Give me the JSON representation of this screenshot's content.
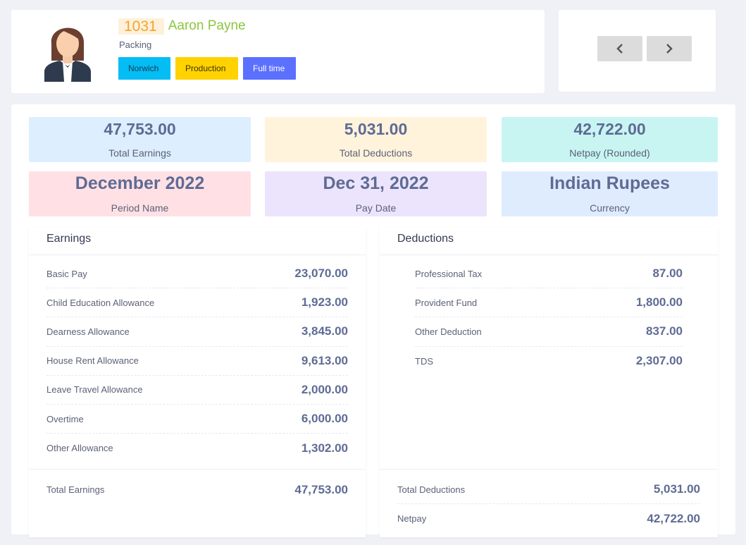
{
  "employee": {
    "id": "1031",
    "name": "Aaron Payne",
    "department": "Packing",
    "tags": {
      "location": "Norwich",
      "division": "Production",
      "type": "Full time"
    }
  },
  "nav": {
    "prev_icon": "chevron-left-icon",
    "next_icon": "chevron-right-icon"
  },
  "stats": {
    "total_earnings": {
      "value": "47,753.00",
      "label": "Total Earnings"
    },
    "total_deductions": {
      "value": "5,031.00",
      "label": "Total Deductions"
    },
    "netpay": {
      "value": "42,722.00",
      "label": "Netpay (Rounded)"
    },
    "period": {
      "value": "December 2022",
      "label": "Period Name"
    },
    "pay_date": {
      "value": "Dec 31, 2022",
      "label": "Pay Date"
    },
    "currency": {
      "value": "Indian Rupees",
      "label": "Currency"
    }
  },
  "colors": {
    "earnings_bg": "#ddeeff",
    "deductions_bg": "#fff3dc",
    "netpay_bg": "#c8f5f2",
    "period_bg": "#ffe1e5",
    "pay_date_bg": "#ebe4fc",
    "currency_bg": "#dfecfe"
  },
  "earnings": {
    "title": "Earnings",
    "items": [
      {
        "label": "Basic Pay",
        "amount": "23,070.00"
      },
      {
        "label": "Child Education Allowance",
        "amount": "1,923.00"
      },
      {
        "label": "Dearness Allowance",
        "amount": "3,845.00"
      },
      {
        "label": "House Rent Allowance",
        "amount": "9,613.00"
      },
      {
        "label": "Leave Travel Allowance",
        "amount": "2,000.00"
      },
      {
        "label": "Overtime",
        "amount": "6,000.00"
      },
      {
        "label": "Other Allowance",
        "amount": "1,302.00"
      }
    ],
    "total": {
      "label": "Total Earnings",
      "amount": "47,753.00"
    }
  },
  "deductions": {
    "title": "Deductions",
    "items": [
      {
        "label": "Professional Tax",
        "amount": "87.00"
      },
      {
        "label": "Provident Fund",
        "amount": "1,800.00"
      },
      {
        "label": "Other Deduction",
        "amount": "837.00"
      },
      {
        "label": "TDS",
        "amount": "2,307.00"
      }
    ],
    "total": {
      "label": "Total Deductions",
      "amount": "5,031.00"
    },
    "netpay": {
      "label": "Netpay",
      "amount": "42,722.00"
    }
  }
}
